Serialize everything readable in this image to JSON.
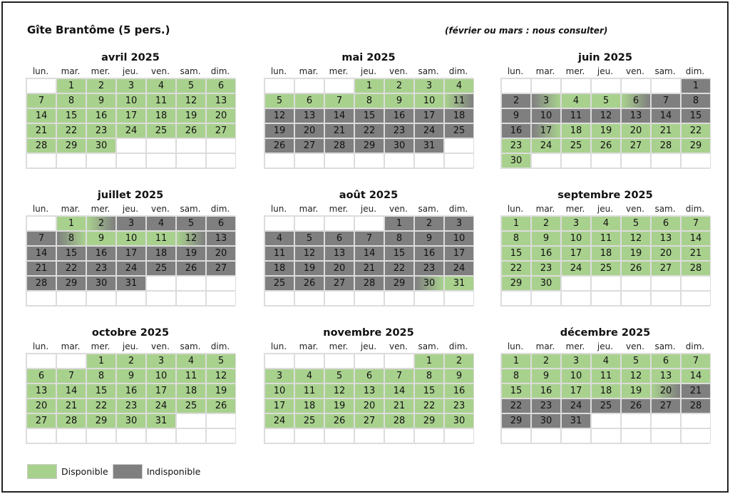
{
  "title": "Gîte Brantôme (5 pers.)",
  "note": "(février ou mars : nous consulter)",
  "weekday_labels": [
    "lun.",
    "mar.",
    "mer.",
    "jeu.",
    "ven.",
    "sam.",
    "dim."
  ],
  "status_colors": {
    "available": "#a9d18e",
    "unavailable": "#7f7f7f",
    "empty": "#ffffff"
  },
  "legend": {
    "available_label": "Disponible",
    "unavailable_label": "Indisponible"
  },
  "months": [
    {
      "name": "avril 2025",
      "offset": 1,
      "days": 30,
      "status": "AAAAAAAAAAAAAAAAAAAAAAAAAAAAAA"
    },
    {
      "name": "mai 2025",
      "offset": 3,
      "days": 31,
      "status": "AAAAAAAAAAUUUUUUUUUUUUUUUUUUUUU"
    },
    {
      "name": "juin 2025",
      "offset": 6,
      "days": 30,
      "status": "UUUAAUUUUUUUUUUUAAAAAAAAAAAAAA"
    },
    {
      "name": "juillet 2025",
      "offset": 1,
      "days": 31,
      "status": "AAUUUUUAAAAAUUUUUUUUUUUUUUUUUUU"
    },
    {
      "name": "août 2025",
      "offset": 4,
      "days": 31,
      "status": "UUUUUUUUUUUUUUUUUUUUUUUUUUUUUAA"
    },
    {
      "name": "septembre 2025",
      "offset": 0,
      "days": 30,
      "status": "AAAAAAAAAAAAAAAAAAAAAAAAAAAAAA"
    },
    {
      "name": "octobre 2025",
      "offset": 2,
      "days": 31,
      "status": "AAAAAAAAAAAAAAAAAAAAAAAAAAAAAAA"
    },
    {
      "name": "novembre 2025",
      "offset": 5,
      "days": 30,
      "status": "AAAAAAAAAAAAAAAAAAAAAAAAAAAAAA"
    },
    {
      "name": "décembre 2025",
      "offset": 0,
      "days": 31,
      "status": "AAAAAAAAAAAAAAAAAAAAUUUUUUUUUUU"
    }
  ],
  "transition_days": {
    "mai 2025": {
      "11": "au"
    },
    "juin 2025": {
      "3": "ua",
      "6": "au",
      "17": "ua"
    },
    "juillet 2025": {
      "2": "au",
      "8": "ua",
      "12": "au"
    },
    "août 2025": {
      "30": "ua"
    },
    "décembre 2025": {
      "20": "au"
    }
  }
}
